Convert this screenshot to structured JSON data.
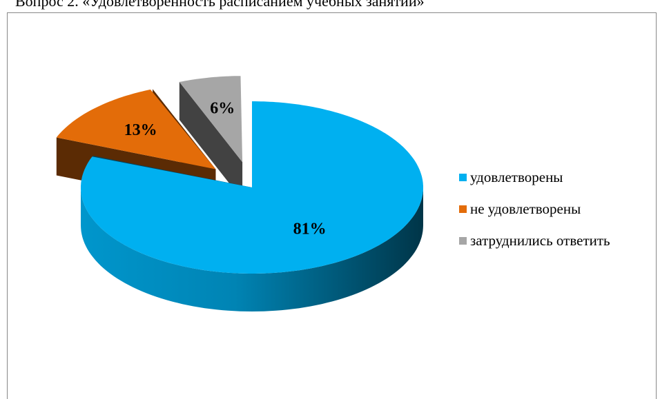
{
  "chart_data": {
    "type": "pie3d",
    "title": "Вопрос 2. «Удовлетворенность расписанием учебных занятий»",
    "categories": [
      "удовлетворены",
      "не удовлетворены",
      "затруднились ответить"
    ],
    "values": [
      81,
      13,
      6
    ],
    "value_labels": [
      "81%",
      "13%",
      "6%"
    ],
    "colors": [
      "#00b0f0",
      "#e36c09",
      "#a6a6a6"
    ],
    "legend": "right"
  }
}
